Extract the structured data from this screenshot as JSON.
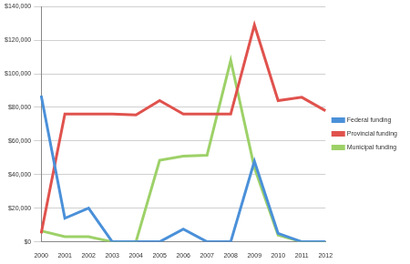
{
  "chart_data": {
    "type": "line",
    "categories": [
      "2000",
      "2001",
      "2002",
      "2003",
      "2004",
      "2005",
      "2006",
      "2007",
      "2008",
      "2009",
      "2010",
      "2011",
      "2012"
    ],
    "series": [
      {
        "name": "Federal funding",
        "color": "#4a90d9",
        "values": [
          87000,
          14000,
          20000,
          0,
          0,
          0,
          7500,
          0,
          0,
          48000,
          5000,
          0,
          0
        ]
      },
      {
        "name": "Provincial funding",
        "color": "#e0524d",
        "values": [
          5000,
          76000,
          76000,
          76000,
          75500,
          84000,
          76000,
          76000,
          76000,
          129000,
          84000,
          86000,
          78000
        ]
      },
      {
        "name": "Municipal funding",
        "color": "#9dd168",
        "values": [
          6500,
          3000,
          3000,
          0,
          0,
          48500,
          51000,
          51500,
          108000,
          44000,
          4000,
          0,
          0
        ]
      }
    ],
    "ylim": [
      0,
      140000
    ],
    "yticks": [
      {
        "value": 0,
        "label": "$0"
      },
      {
        "value": 20000,
        "label": "$20,000"
      },
      {
        "value": 40000,
        "label": "$40,000"
      },
      {
        "value": 60000,
        "label": "$60,000"
      },
      {
        "value": 80000,
        "label": "$80,000"
      },
      {
        "value": 100000,
        "label": "$100,000"
      },
      {
        "value": 120000,
        "label": "$120,000"
      },
      {
        "value": 140000,
        "label": "$140,000"
      }
    ],
    "grid": true,
    "legend": "right"
  }
}
